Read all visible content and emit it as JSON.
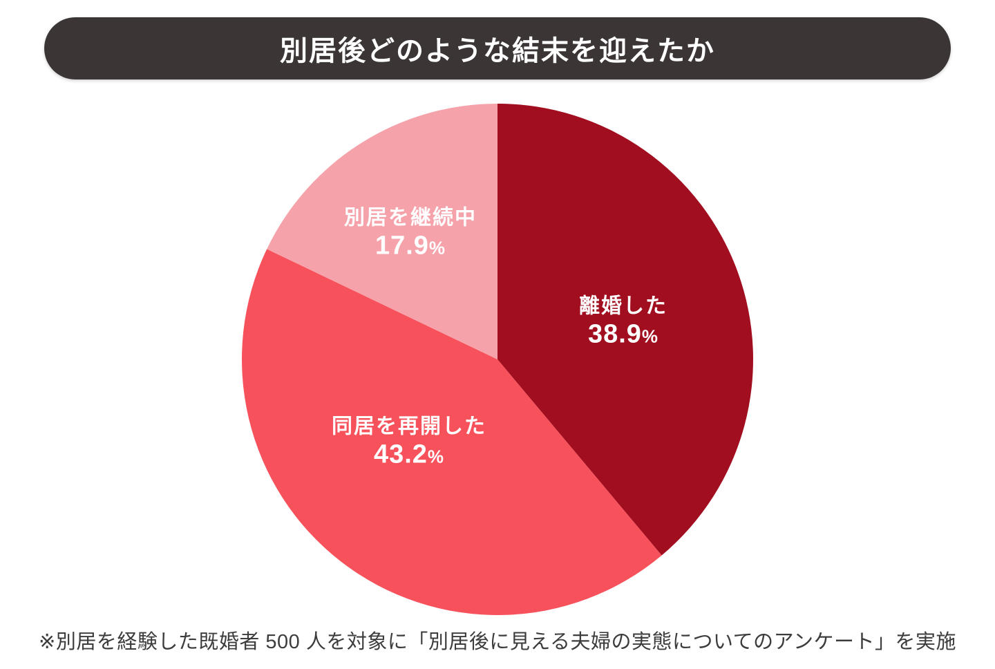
{
  "header": {
    "title": "別居後どのような結末を迎えたか",
    "bg_color": "#3B3635",
    "text_color": "#FFFFFF"
  },
  "chart_data": {
    "type": "pie",
    "title": "別居後どのような結末を迎えたか",
    "start_angle_deg": -90,
    "direction": "clockwise",
    "percent_symbol": "%",
    "label_text_color": "#FFFFFF",
    "slices": [
      {
        "label": "離婚した",
        "value": "38.9",
        "color": "#A10E1F"
      },
      {
        "label": "同居を再開した",
        "value": "43.2",
        "color": "#F7515B"
      },
      {
        "label": "別居を継続中",
        "value": "17.9",
        "color": "#F6A2AA"
      }
    ]
  },
  "footnote": {
    "text": "※別居を経験した既婚者 500 人を対象に「別居後に見える夫婦の実態についてのアンケート」を実施"
  }
}
